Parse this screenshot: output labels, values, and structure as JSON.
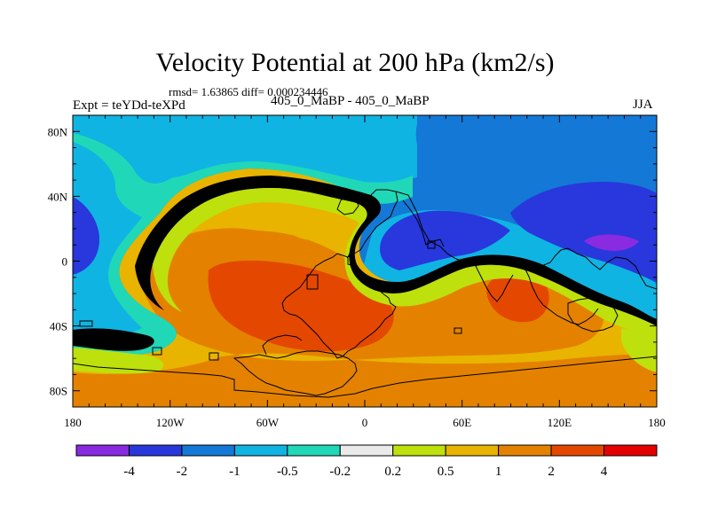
{
  "figure": {
    "title": "Velocity Potential at 200 hPa (km2/s)",
    "stats": "rmsd= 1.63865 diff= 0.000234446",
    "expt": "Expt = teYDd-teXPd",
    "subtitle": "405_0_MaBP - 405_0_MaBP",
    "season": "JJA"
  },
  "axes": {
    "x_ticks": [
      "180",
      "120W",
      "60W",
      "0",
      "60E",
      "120E",
      "180"
    ],
    "y_ticks": [
      "80N",
      "40N",
      "0",
      "40S",
      "80S"
    ]
  },
  "colorbar": {
    "labels": [
      "-4",
      "-2",
      "-1",
      "-0.5",
      "-0.2",
      "0.2",
      "0.5",
      "1",
      "2",
      "4"
    ],
    "colors": [
      "#8a2be2",
      "#2838dc",
      "#1478d6",
      "#10b4e2",
      "#20d8b8",
      "#eaeaea",
      "#bee00c",
      "#e8b400",
      "#e48200",
      "#e44800",
      "#e40000"
    ]
  },
  "map_colors": {
    "lt_neg4": "#8a2be2",
    "neg4_neg2": "#2838dc",
    "neg2_neg1": "#1478d6",
    "neg1_neg05": "#10b4e2",
    "neg05_neg02": "#20d8b8",
    "neg02_02": "#eaeaea",
    "p02_p05": "#bee00c",
    "p05_p1": "#e8b400",
    "p1_p2": "#e48200",
    "p2_p4": "#e44800"
  }
}
